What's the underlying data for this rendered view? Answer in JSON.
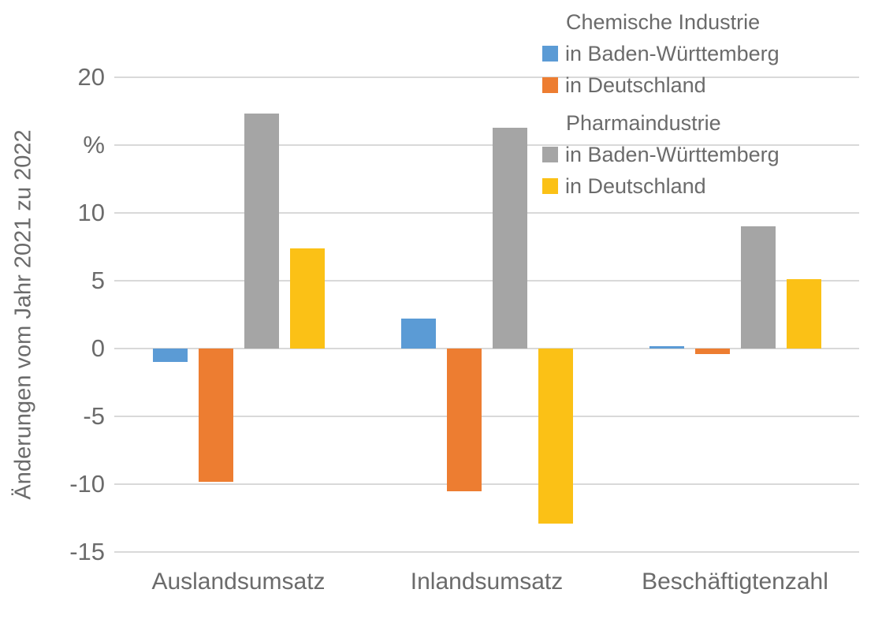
{
  "y_axis": {
    "title": "Änderungen vom Jahr 2021 zu 2022"
  },
  "legend": {
    "groups": [
      {
        "title": "Chemische Industrie",
        "items": [
          {
            "label": "in Baden-Württemberg",
            "color": "#5B9BD5"
          },
          {
            "label": "in Deutschland",
            "color": "#ED7D31"
          }
        ]
      },
      {
        "title": "Pharmaindustrie",
        "items": [
          {
            "label": "in Baden-Württemberg",
            "color": "#A5A5A5"
          },
          {
            "label": "in Deutschland",
            "color": "#FBC116"
          }
        ]
      }
    ]
  },
  "chart_data": {
    "type": "bar",
    "title": "",
    "categories": [
      "Auslandsumsatz",
      "Inlandsumsatz",
      "Beschäftigtenzahl"
    ],
    "series": [
      {
        "name": "Chemische Industrie in Baden-Württemberg",
        "color": "#5B9BD5",
        "values": [
          -1.0,
          2.2,
          0.2
        ]
      },
      {
        "name": "Chemische Industrie in Deutschland",
        "color": "#ED7D31",
        "values": [
          -9.8,
          -10.5,
          -0.4
        ]
      },
      {
        "name": "Pharmaindustrie in Baden-Württemberg",
        "color": "#A5A5A5",
        "values": [
          17.3,
          16.3,
          9.0
        ]
      },
      {
        "name": "Pharmaindustrie in Deutschland",
        "color": "#FBC116",
        "values": [
          7.4,
          -12.9,
          5.1
        ]
      }
    ],
    "xlabel": "",
    "ylabel": "Änderungen vom Jahr 2021 zu 2022",
    "unit_label": "%",
    "ylim": [
      -15,
      20
    ],
    "yticks": [
      {
        "value": 20,
        "label": "20"
      },
      {
        "value": 15,
        "label": "%"
      },
      {
        "value": 10,
        "label": "10"
      },
      {
        "value": 5,
        "label": "5"
      },
      {
        "value": 0,
        "label": "0"
      },
      {
        "value": -5,
        "label": "-5"
      },
      {
        "value": -10,
        "label": "-10"
      },
      {
        "value": -15,
        "label": "-15"
      }
    ],
    "grid": true,
    "legend_position": "top-right",
    "colors": {
      "grid": "#D9D9D9",
      "text": "#6B6B6B",
      "background": "#FFFFFF"
    }
  }
}
